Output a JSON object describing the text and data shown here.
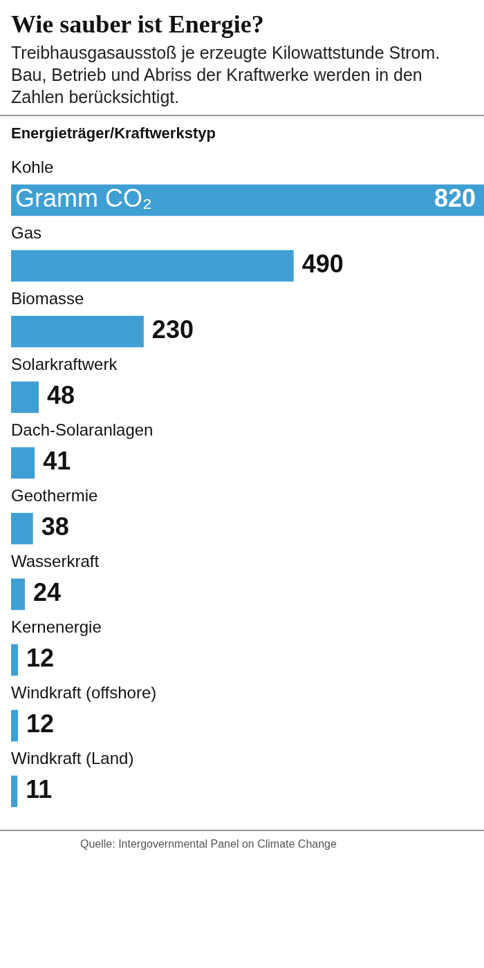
{
  "chart_data": {
    "type": "bar",
    "orientation": "horizontal",
    "title": "Wie sauber ist Energie?",
    "subtitle": "Treibhausgasausstoß je erzeugte Kilowattstunde Strom. Bau, Betrieb und Abriss der Kraftwerke werden in den Zahlen berücksichtigt.",
    "ylabel": "Energieträger/Kraftwerkstyp",
    "xlabel": "Gramm CO₂",
    "categories": [
      "Kohle",
      "Gas",
      "Biomasse",
      "Solarkraftwerk",
      "Dach-Solaranlagen",
      "Geothermie",
      "Wasserkraft",
      "Kernenergie",
      "Windkraft (offshore)",
      "Windkraft (Land)"
    ],
    "values": [
      820,
      490,
      230,
      48,
      41,
      38,
      24,
      12,
      12,
      11
    ],
    "color": "#3f9fd3",
    "data_labels": true,
    "legend": false,
    "annotations": [
      "Quelle: Intergovernmental Panel on Climate Change"
    ]
  }
}
